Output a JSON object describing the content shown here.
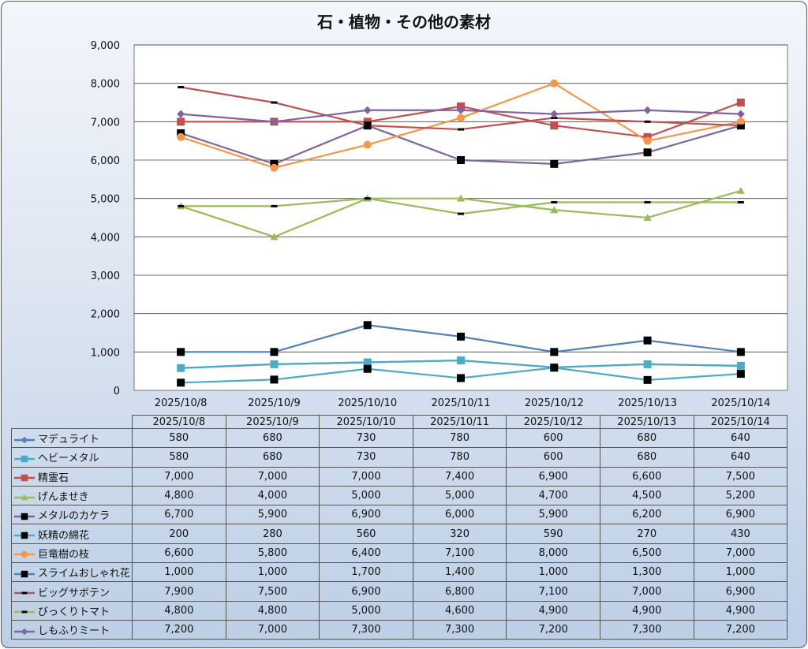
{
  "chart_data": {
    "type": "line",
    "title": "石・植物・その他の素材",
    "xlabel": "",
    "ylabel": "",
    "ylim": [
      0,
      9000
    ],
    "yticks": [
      "0",
      "1,000",
      "2,000",
      "3,000",
      "4,000",
      "5,000",
      "6,000",
      "7,000",
      "8,000",
      "9,000"
    ],
    "grid": true,
    "legend": "data-table",
    "categories": [
      "2025/10/8",
      "2025/10/9",
      "2025/10/10",
      "2025/10/11",
      "2025/10/12",
      "2025/10/13",
      "2025/10/14"
    ],
    "series": [
      {
        "name": "マデュライト",
        "color": "#4F81BD",
        "marker": "diamond",
        "markerColor": "#4F81BD",
        "values": [
          580,
          680,
          730,
          780,
          600,
          680,
          640
        ],
        "labels": [
          "580",
          "680",
          "730",
          "780",
          "600",
          "680",
          "640"
        ]
      },
      {
        "name": "ヘビーメタル",
        "color": "#4BACC6",
        "marker": "square",
        "markerColor": "#4BACC6",
        "values": [
          580,
          680,
          730,
          780,
          600,
          680,
          640
        ],
        "labels": [
          "580",
          "680",
          "730",
          "780",
          "600",
          "680",
          "640"
        ]
      },
      {
        "name": "精霊石",
        "color": "#C0504D",
        "marker": "square",
        "markerColor": "#C0504D",
        "values": [
          7000,
          7000,
          7000,
          7400,
          6900,
          6600,
          7500
        ],
        "labels": [
          "7,000",
          "7,000",
          "7,000",
          "7,400",
          "6,900",
          "6,600",
          "7,500"
        ]
      },
      {
        "name": "げんませき",
        "color": "#9BBB59",
        "marker": "triangle",
        "markerColor": "#9BBB59",
        "values": [
          4800,
          4000,
          5000,
          5000,
          4700,
          4500,
          5200
        ],
        "labels": [
          "4,800",
          "4,000",
          "5,000",
          "5,000",
          "4,700",
          "4,500",
          "5,200"
        ]
      },
      {
        "name": "メタルのカケラ",
        "color": "#8064A2",
        "marker": "square",
        "markerColor": "#000000",
        "values": [
          6700,
          5900,
          6900,
          6000,
          5900,
          6200,
          6900
        ],
        "labels": [
          "6,700",
          "5,900",
          "6,900",
          "6,000",
          "5,900",
          "6,200",
          "6,900"
        ]
      },
      {
        "name": "妖精の綿花",
        "color": "#4BACC6",
        "marker": "square",
        "markerColor": "#000000",
        "values": [
          200,
          280,
          560,
          320,
          590,
          270,
          430
        ],
        "labels": [
          "200",
          "280",
          "560",
          "320",
          "590",
          "270",
          "430"
        ]
      },
      {
        "name": "巨竜樹の枝",
        "color": "#F79646",
        "marker": "circle",
        "markerColor": "#F79646",
        "values": [
          6600,
          5800,
          6400,
          7100,
          8000,
          6500,
          7000
        ],
        "labels": [
          "6,600",
          "5,800",
          "6,400",
          "7,100",
          "8,000",
          "6,500",
          "7,000"
        ]
      },
      {
        "name": "スライムおしゃれ花",
        "color": "#4F81BD",
        "marker": "square",
        "markerColor": "#000000",
        "values": [
          1000,
          1000,
          1700,
          1400,
          1000,
          1300,
          1000
        ],
        "labels": [
          "1,000",
          "1,000",
          "1,700",
          "1,400",
          "1,000",
          "1,300",
          "1,000"
        ]
      },
      {
        "name": "ビッグサボテン",
        "color": "#C0504D",
        "marker": "dash",
        "markerColor": "#000000",
        "values": [
          7900,
          7500,
          6900,
          6800,
          7100,
          7000,
          6900
        ],
        "labels": [
          "7,900",
          "7,500",
          "6,900",
          "6,800",
          "7,100",
          "7,000",
          "6,900"
        ]
      },
      {
        "name": "びっくりトマト",
        "color": "#9BBB59",
        "marker": "dash",
        "markerColor": "#000000",
        "values": [
          4800,
          4800,
          5000,
          4600,
          4900,
          4900,
          4900
        ],
        "labels": [
          "4,800",
          "4,800",
          "5,000",
          "4,600",
          "4,900",
          "4,900",
          "4,900"
        ]
      },
      {
        "name": "しもふりミート",
        "color": "#8064A2",
        "marker": "diamond",
        "markerColor": "#8064A2",
        "values": [
          7200,
          7000,
          7300,
          7300,
          7200,
          7300,
          7200
        ],
        "labels": [
          "7,200",
          "7,000",
          "7,300",
          "7,300",
          "7,200",
          "7,300",
          "7,200"
        ]
      }
    ]
  }
}
